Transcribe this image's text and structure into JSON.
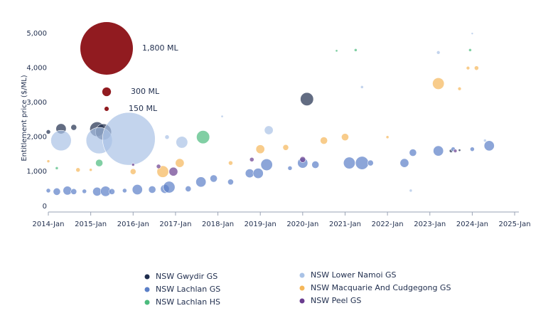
{
  "chart_data": {
    "type": "bubble",
    "ylabel": "Entitlement price ($/ML)",
    "xlim": [
      2014,
      2025.1
    ],
    "ylim": [
      -170,
      5250
    ],
    "xticks": [
      {
        "value": 2014,
        "label": "2014-Jan"
      },
      {
        "value": 2015,
        "label": "2015-Jan"
      },
      {
        "value": 2016,
        "label": "2016-Jan"
      },
      {
        "value": 2017,
        "label": "2017-Jan"
      },
      {
        "value": 2018,
        "label": "2018-Jan"
      },
      {
        "value": 2019,
        "label": "2019-Jan"
      },
      {
        "value": 2020,
        "label": "2020-Jan"
      },
      {
        "value": 2021,
        "label": "2021-Jan"
      },
      {
        "value": 2022,
        "label": "2022-Jan"
      },
      {
        "value": 2023,
        "label": "2023-Jan"
      },
      {
        "value": 2024,
        "label": "2024-Jan"
      },
      {
        "value": 2025,
        "label": "2025-Jan"
      }
    ],
    "yticks": [
      0,
      {
        "value": 1000,
        "label": "1,000"
      },
      {
        "value": 2000,
        "label": "2,000"
      },
      {
        "value": 3000,
        "label": "3,000"
      },
      {
        "value": 4000,
        "label": "4,000"
      },
      {
        "value": 5000,
        "label": "5,000"
      }
    ],
    "size_legend": [
      {
        "value": 1800,
        "label": "1,800 ML"
      },
      {
        "value": 300,
        "label": "300 ML"
      },
      {
        "value": 150,
        "label": "150 ML"
      }
    ],
    "size_legend_color": "#8b0f14",
    "series": [
      {
        "name": "NSW Gwydir GS",
        "color": "#1f2d4d",
        "x": [
          2014.0,
          2014.3,
          2014.6,
          2015.15,
          2015.3,
          2020.1,
          2023.5,
          2023.7
        ],
        "values": [
          2150,
          2240,
          2280,
          2230,
          2150,
          3100,
          1600,
          1620
        ],
        "sizes": [
          150,
          350,
          200,
          500,
          550,
          450,
          120,
          80
        ]
      },
      {
        "name": "NSW Lachlan GS",
        "color": "#5b7fc7",
        "x": [
          2014.0,
          2014.2,
          2014.45,
          2014.6,
          2014.85,
          2015.15,
          2015.35,
          2015.5,
          2015.8,
          2016.1,
          2016.45,
          2016.75,
          2016.85,
          2017.3,
          2017.6,
          2017.9,
          2018.3,
          2018.75,
          2018.95,
          2019.15,
          2019.7,
          2020.0,
          2020.3,
          2021.1,
          2021.4,
          2021.6,
          2022.4,
          2022.6,
          2023.2,
          2023.55,
          2024.0,
          2024.4
        ],
        "values": [
          450,
          420,
          450,
          420,
          430,
          420,
          430,
          420,
          450,
          480,
          480,
          500,
          550,
          500,
          700,
          800,
          700,
          950,
          950,
          1200,
          1100,
          1250,
          1200,
          1250,
          1250,
          1250,
          1250,
          1550,
          1600,
          1650,
          1650,
          1750
        ],
        "sizes": [
          150,
          250,
          300,
          200,
          150,
          300,
          350,
          200,
          150,
          350,
          250,
          300,
          400,
          200,
          350,
          250,
          200,
          300,
          350,
          400,
          150,
          350,
          250,
          400,
          450,
          200,
          300,
          250,
          350,
          150,
          150,
          350
        ]
      },
      {
        "name": "NSW Lachlan HS",
        "color": "#4cbb7d",
        "x": [
          2014.2,
          2015.2,
          2017.65,
          2020.8,
          2021.25,
          2023.95
        ],
        "values": [
          1100,
          1250,
          2000,
          4500,
          4520,
          4520
        ],
        "sizes": [
          100,
          250,
          450,
          80,
          100,
          100
        ]
      },
      {
        "name": "NSW Lower Namoi GS",
        "color": "#a9c2e6",
        "x": [
          2014.3,
          2015.2,
          2015.9,
          2016.8,
          2017.15,
          2018.1,
          2019.2,
          2021.4,
          2022.55,
          2023.2,
          2024.0,
          2024.3
        ],
        "values": [
          1900,
          1900,
          1950,
          2000,
          1850,
          2600,
          2200,
          3450,
          450,
          4450,
          5000,
          1900
        ],
        "sizes": [
          700,
          900,
          1800,
          150,
          400,
          80,
          300,
          100,
          100,
          120,
          50,
          100
        ]
      },
      {
        "name": "NSW Macquarie And Cudgegong GS",
        "color": "#f5b75a",
        "x": [
          2014.0,
          2014.7,
          2015.0,
          2016.0,
          2016.7,
          2017.1,
          2018.3,
          2019.0,
          2019.6,
          2020.5,
          2021.0,
          2022.0,
          2023.2,
          2023.7,
          2023.9,
          2024.1
        ],
        "values": [
          1300,
          1050,
          1050,
          1000,
          1000,
          1250,
          1250,
          1650,
          1700,
          1900,
          2000,
          2000,
          3550,
          3400,
          4000,
          4000
        ],
        "sizes": [
          100,
          150,
          100,
          200,
          400,
          300,
          150,
          300,
          200,
          250,
          250,
          100,
          400,
          120,
          120,
          150
        ]
      },
      {
        "name": "NSW Peel GS",
        "color": "#6a3d8f",
        "x": [
          2016.0,
          2016.6,
          2016.95,
          2018.8,
          2020.0,
          2023.6
        ],
        "values": [
          1200,
          1150,
          1000,
          1350,
          1350,
          1600
        ],
        "sizes": [
          100,
          150,
          300,
          150,
          200,
          120
        ]
      }
    ]
  }
}
